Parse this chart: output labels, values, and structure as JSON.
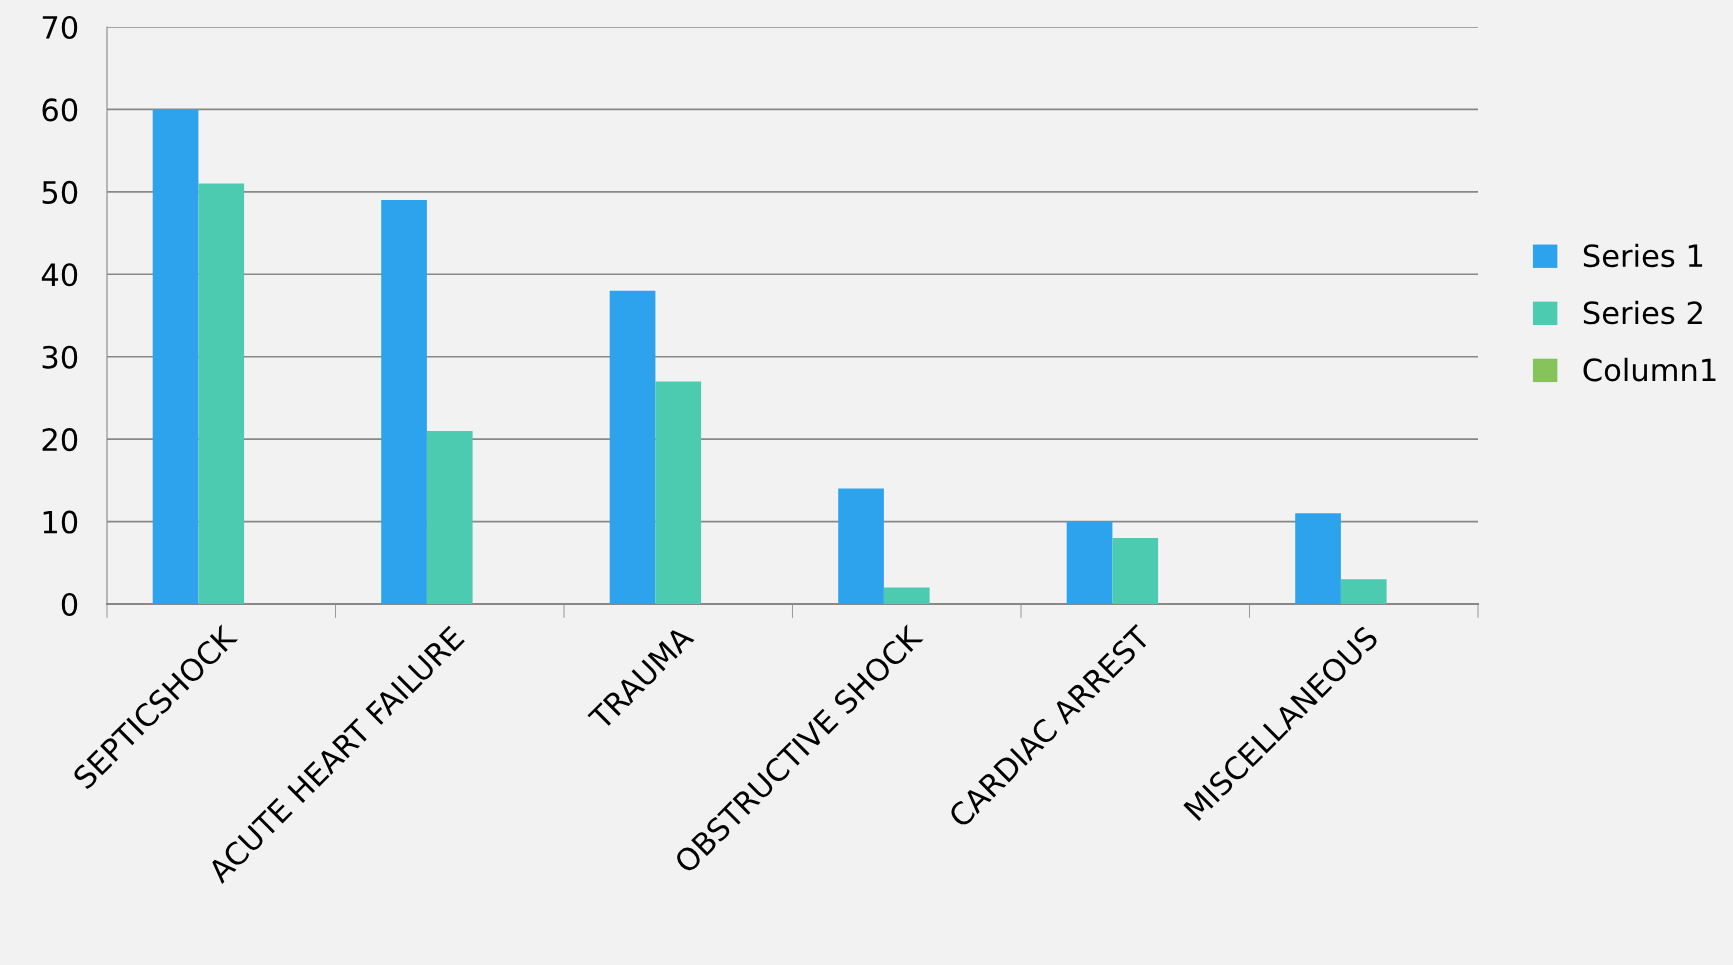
{
  "chart_data": {
    "type": "bar",
    "categories": [
      "SEPTICSHOCK",
      "ACUTE HEART FAILURE",
      "TRAUMA",
      "OBSTRUCTIVE SHOCK",
      "CARDIAC ARREST",
      "MISCELLANEOUS"
    ],
    "series": [
      {
        "name": "Series 1",
        "color": "#2ea3ed",
        "values": [
          60,
          49,
          38,
          14,
          10,
          11
        ]
      },
      {
        "name": "Series 2",
        "color": "#4ccbb0",
        "values": [
          51,
          21,
          27,
          2,
          8,
          3
        ]
      },
      {
        "name": "Column1",
        "color": "#86c35a",
        "values": [
          null,
          null,
          null,
          null,
          null,
          null
        ]
      }
    ],
    "ylim": [
      0,
      70
    ],
    "yticks": [
      0,
      10,
      20,
      30,
      40,
      50,
      60,
      70
    ],
    "grid": "y",
    "legend": "right"
  }
}
